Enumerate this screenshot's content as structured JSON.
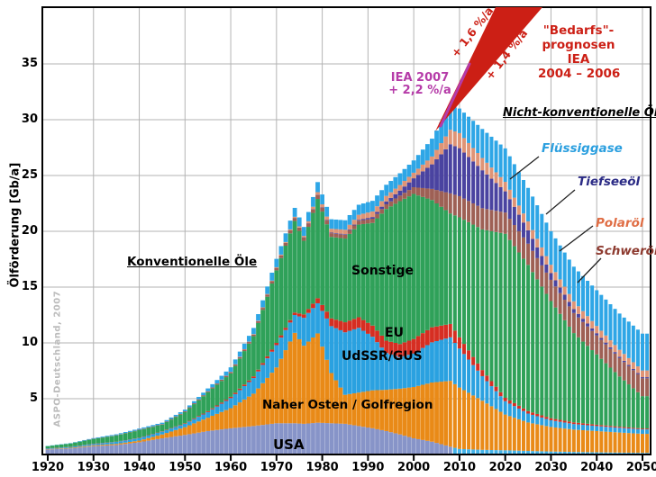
{
  "labels": {
    "ylabel": "Ölförderung [Gb/a]",
    "watermark": "ASPO-Deutschland, 2007",
    "konventionelle": "Konventionelle Öle",
    "nicht_konventionelle": "Nicht-konventionelle Öle",
    "sonstige": "Sonstige",
    "eu": "EU",
    "udssr": "UdSSR/GUS",
    "naher_osten": "Naher Osten / Golfregion",
    "usa": "USA",
    "fluessiggase": "Flüssiggase",
    "tiefseeoel": "Tiefseeöl",
    "polaroel": "Polaröl",
    "schweroel": "Schweröl",
    "iea2007_line1": "IEA 2007",
    "iea2007_line2": "+ 2,2 %/a",
    "bedarfs_line1": "\"Bedarfs\"-",
    "bedarfs_line2": "prognosen",
    "bedarfs_line3": "IEA",
    "bedarfs_line4": "2004 – 2006",
    "growth_16": "+ 1,6 %/a",
    "growth_14": "+ 1,4 %/a"
  },
  "colors": {
    "prognosis_red": "#cc1f15",
    "iea2007_magenta": "#b53ba8",
    "grid": "#b3b3b3",
    "border": "#000000",
    "fluessiggase_label": "#2b9fdf",
    "tiefseeoel_label": "#2b2b85",
    "polaroel_label": "#e06e45",
    "schweroel_label": "#8e3c31",
    "watermark_gray": "#bcbcbc"
  },
  "chart_data": {
    "type": "bar",
    "subtype": "stacked-yearly-bars-with-forecast",
    "title": "",
    "xlabel": "",
    "ylabel": "Ölförderung [Gb/a]",
    "x_range": [
      1920,
      2051
    ],
    "ylim": [
      0,
      40
    ],
    "x_ticks": [
      1920,
      1930,
      1940,
      1950,
      1960,
      1970,
      1980,
      1990,
      2000,
      2010,
      2020,
      2030,
      2040,
      2050
    ],
    "y_ticks": [
      5,
      10,
      15,
      20,
      25,
      30,
      35
    ],
    "grid": true,
    "forecast_start": 2008,
    "keyframe_years": [
      1920,
      1925,
      1930,
      1935,
      1940,
      1945,
      1950,
      1955,
      1960,
      1965,
      1970,
      1974,
      1976,
      1979,
      1982,
      1985,
      1988,
      1991,
      1994,
      1997,
      2000,
      2004,
      2008,
      2010,
      2015,
      2020,
      2025,
      2030,
      2035,
      2040,
      2045,
      2050
    ],
    "series": [
      {
        "name": "USA",
        "color": "#8794c8",
        "forecast_color": "#43b2e8",
        "values": [
          0.45,
          0.55,
          0.75,
          0.85,
          1.1,
          1.45,
          1.75,
          2.1,
          2.35,
          2.55,
          2.8,
          2.8,
          2.75,
          2.85,
          2.8,
          2.75,
          2.55,
          2.35,
          2.1,
          1.8,
          1.45,
          1.15,
          0.7,
          0.5,
          0.42,
          0.38,
          0.32,
          0.27,
          0.23,
          0.2,
          0.17,
          0.15
        ]
      },
      {
        "name": "Naher Osten / Golfregion",
        "color": "#e98a17",
        "values": [
          0.03,
          0.05,
          0.08,
          0.1,
          0.15,
          0.35,
          0.7,
          1.2,
          1.8,
          2.9,
          5.0,
          8.1,
          7.0,
          8.0,
          4.5,
          2.6,
          3.0,
          3.4,
          3.7,
          4.1,
          4.6,
          5.3,
          5.9,
          5.5,
          4.4,
          3.2,
          2.55,
          2.2,
          2.0,
          1.9,
          1.8,
          1.7
        ]
      },
      {
        "name": "UdSSR/GUS",
        "color": "#2aa1e0",
        "values": [
          0.05,
          0.07,
          0.12,
          0.18,
          0.22,
          0.25,
          0.3,
          0.5,
          0.9,
          1.4,
          2.0,
          1.6,
          2.5,
          2.7,
          4.2,
          5.6,
          5.8,
          4.8,
          3.3,
          2.8,
          3.0,
          3.6,
          3.9,
          3.5,
          2.2,
          1.2,
          0.8,
          0.6,
          0.5,
          0.45,
          0.42,
          0.4
        ]
      },
      {
        "name": "EU",
        "color": "#d62e22",
        "values": [
          0.02,
          0.02,
          0.02,
          0.02,
          0.03,
          0.03,
          0.05,
          0.08,
          0.12,
          0.15,
          0.2,
          0.22,
          0.3,
          0.45,
          0.7,
          0.9,
          0.95,
          1.0,
          1.1,
          1.2,
          1.3,
          1.35,
          1.2,
          1.0,
          0.55,
          0.3,
          0.22,
          0.18,
          0.15,
          0.12,
          0.1,
          0.08
        ]
      },
      {
        "name": "Sonstige",
        "color": "#2fa159",
        "values": [
          0.2,
          0.3,
          0.42,
          0.55,
          0.68,
          0.6,
          1.0,
          1.7,
          2.1,
          3.6,
          6.5,
          8.2,
          6.6,
          8.9,
          7.3,
          7.5,
          8.3,
          9.2,
          11.8,
          12.8,
          13.0,
          11.4,
          9.9,
          10.75,
          12.6,
          14.7,
          13.1,
          10.5,
          8.0,
          6.3,
          4.5,
          2.9
        ]
      },
      {
        "name": "Schweröl",
        "color": "#9e6055",
        "values": [
          0.0,
          0.01,
          0.02,
          0.03,
          0.04,
          0.05,
          0.07,
          0.09,
          0.12,
          0.15,
          0.22,
          0.28,
          0.3,
          0.33,
          0.33,
          0.33,
          0.35,
          0.38,
          0.42,
          0.5,
          0.6,
          1.0,
          1.8,
          1.9,
          1.9,
          1.9,
          1.9,
          1.9,
          1.8,
          1.7,
          1.65,
          1.6
        ]
      },
      {
        "name": "Tiefseeöl",
        "color": "#4a43a0",
        "values": [
          0,
          0,
          0,
          0,
          0,
          0,
          0,
          0,
          0,
          0,
          0,
          0.01,
          0.02,
          0.03,
          0.05,
          0.06,
          0.08,
          0.15,
          0.25,
          0.45,
          0.8,
          2.2,
          4.4,
          4.3,
          3.4,
          1.9,
          1.2,
          0.6,
          0.35,
          0.2,
          0.12,
          0.1
        ]
      },
      {
        "name": "Polaröl",
        "color": "#df9476",
        "values": [
          0,
          0,
          0,
          0,
          0,
          0,
          0,
          0,
          0.02,
          0.04,
          0.06,
          0.09,
          0.12,
          0.25,
          0.35,
          0.4,
          0.45,
          0.5,
          0.5,
          0.5,
          0.5,
          0.7,
          1.3,
          1.35,
          1.1,
          0.85,
          0.8,
          0.75,
          0.7,
          0.65,
          0.62,
          0.6
        ]
      },
      {
        "name": "Flüssiggase",
        "color": "#2ea6e6",
        "values": [
          0.02,
          0.03,
          0.06,
          0.08,
          0.1,
          0.12,
          0.15,
          0.25,
          0.4,
          0.55,
          0.75,
          0.8,
          0.8,
          0.9,
          0.85,
          0.85,
          0.9,
          0.95,
          1.0,
          1.05,
          1.1,
          1.6,
          2.1,
          2.2,
          2.6,
          3.0,
          3.0,
          3.0,
          3.1,
          3.2,
          3.25,
          3.3
        ]
      }
    ],
    "annotations": {
      "iea_2007_trend_pct_per_year": "+ 2,2 %/a",
      "iea_demand_trends_pct_per_year": [
        "+ 1,6 %/a",
        "+ 1,4 %/a"
      ],
      "demand_source": "\"Bedarfs\"-prognosen IEA 2004 – 2006"
    }
  }
}
